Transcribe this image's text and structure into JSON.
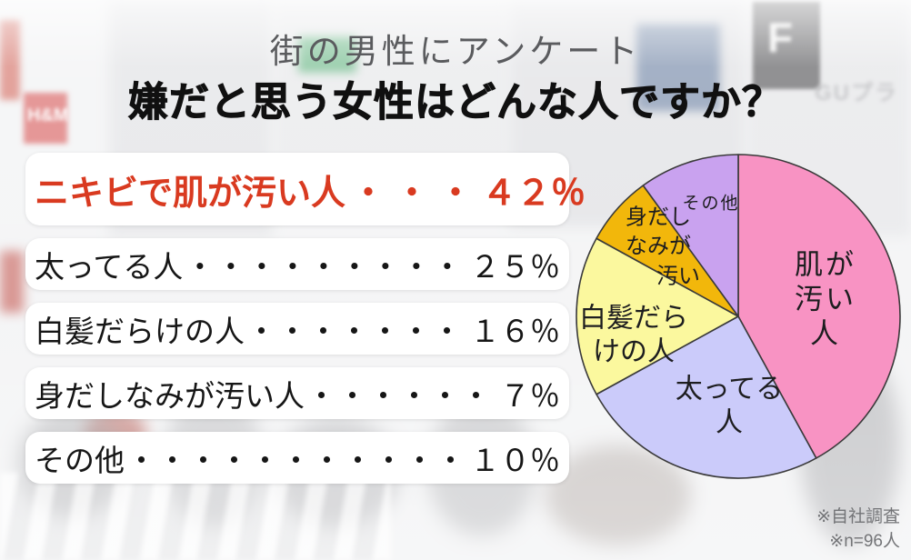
{
  "header": {
    "survey_label": "街の男性にアンケート",
    "question": "嫌だと思う女性はどんな人ですか？"
  },
  "results": {
    "rows": [
      {
        "label": "ニキビで肌が汚い人",
        "dots": "・・・",
        "value": "４２％",
        "percent": 42,
        "highlight": true,
        "text_color": "#d93a20"
      },
      {
        "label": "太ってる人",
        "dots": "・・・・・・・・・",
        "value": "２５％",
        "percent": 25,
        "highlight": false,
        "text_color": "#161616"
      },
      {
        "label": "白髪だらけの人",
        "dots": "・・・・・・・",
        "value": "１６％",
        "percent": 16,
        "highlight": false,
        "text_color": "#161616"
      },
      {
        "label": "身だしなみが汚い人",
        "dots": "・・・・・・",
        "value": "７％",
        "percent": 7,
        "highlight": false,
        "text_color": "#161616"
      },
      {
        "label": "その他",
        "dots": "・・・・・・・・・・・",
        "value": "１０％",
        "percent": 10,
        "highlight": false,
        "text_color": "#161616"
      }
    ]
  },
  "chart_data": {
    "type": "pie",
    "title": "嫌だと思う女性はどんな人ですか？",
    "start_angle_deg": 0,
    "direction": "clockwise",
    "outline_color": "#3a3a3a",
    "legend_position": "labels-inside-slices",
    "slices": [
      {
        "id": "hada-ga-kitanai",
        "label": "肌が汚い人",
        "label_lines": [
          "肌が汚い人"
        ],
        "value": 42,
        "color": "#f893c3"
      },
      {
        "id": "futotteru",
        "label": "太ってる人",
        "label_lines": [
          "太ってる",
          "人"
        ],
        "value": 25,
        "color": "#cbcbfa"
      },
      {
        "id": "shiraga-darake",
        "label": "白髪だらけの人",
        "label_lines": [
          "白髪だら",
          "けの人"
        ],
        "value": 16,
        "color": "#fbf89e"
      },
      {
        "id": "midashinami",
        "label": "身だしなみが汚い",
        "label_lines": [
          "身だし",
          "なみが",
          "汚い"
        ],
        "value": 7,
        "color": "#f2b70b"
      },
      {
        "id": "sonota",
        "label": "その他",
        "label_lines": [
          "その他"
        ],
        "value": 10,
        "color": "#c9a2ef"
      }
    ]
  },
  "footnotes": {
    "line1": "※自社調査",
    "line2": "※n=96人"
  },
  "background": {
    "description": "blurred photo of a busy city crossing (Shibuya-style) with storefront signs and pedestrians",
    "signs": [
      {
        "text": "H&M"
      },
      {
        "text": "F"
      },
      {
        "text": "GUプラ"
      }
    ]
  }
}
